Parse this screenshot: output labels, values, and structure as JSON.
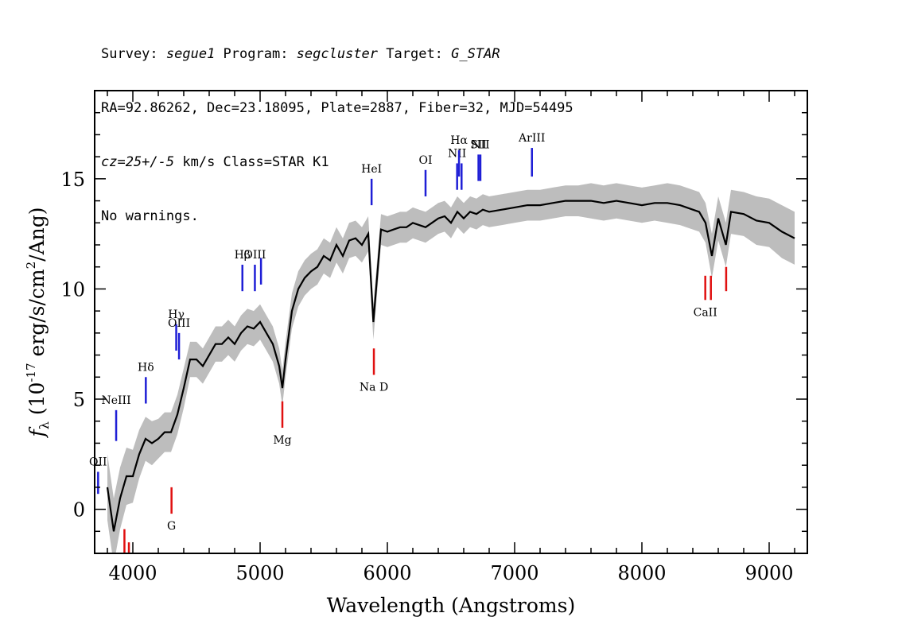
{
  "header": {
    "line1": {
      "survey_label": "Survey: ",
      "survey": "segue1",
      "program_label": " Program: ",
      "program": "segcluster",
      "target_label": " Target: ",
      "target": "G_STAR"
    },
    "line2": "RA=92.86262, Dec=23.18095, Plate=2887, Fiber=32, MJD=54495",
    "line3": {
      "cz": "cz=25+/-5",
      "rest": " km/s Class=STAR K1"
    },
    "line4": "No warnings."
  },
  "colors": {
    "spectrum": "#000000",
    "error_band": "#bdbdbd",
    "emission_line": "#1f1fd6",
    "absorption_line": "#e01010"
  },
  "chart_data": {
    "type": "line",
    "xlabel": "Wavelength (Angstroms)",
    "ylabel": "f_λ (10^-17 erg/s/cm^2/Ang)",
    "xlim": [
      3700,
      9300
    ],
    "ylim": [
      -2,
      19
    ],
    "xticks": [
      4000,
      5000,
      6000,
      7000,
      8000,
      9000
    ],
    "yticks": [
      0,
      5,
      10,
      15
    ],
    "grid": false,
    "series": [
      {
        "x": [
          3800,
          3850,
          3900,
          3950,
          4000,
          4050,
          4100,
          4150,
          4200,
          4250,
          4300,
          4350,
          4400,
          4450,
          4500,
          4550,
          4600,
          4650,
          4700,
          4750,
          4800,
          4850,
          4900,
          4950,
          5000,
          5050,
          5100,
          5150,
          5175,
          5200,
          5250,
          5300,
          5350,
          5400,
          5450,
          5500,
          5550,
          5600,
          5650,
          5700,
          5750,
          5800,
          5850,
          5890,
          5950,
          6000,
          6050,
          6100,
          6150,
          6200,
          6250,
          6300,
          6350,
          6400,
          6450,
          6500,
          6550,
          6600,
          6650,
          6700,
          6750,
          6800,
          6900,
          7000,
          7100,
          7200,
          7300,
          7400,
          7500,
          7600,
          7700,
          7800,
          7900,
          8000,
          8100,
          8200,
          8300,
          8400,
          8450,
          8500,
          8550,
          8600,
          8660,
          8700,
          8800,
          8900,
          9000,
          9100,
          9200
        ],
        "y": [
          1.0,
          -1.0,
          0.5,
          1.5,
          1.5,
          2.5,
          3.2,
          3.0,
          3.2,
          3.5,
          3.5,
          4.3,
          5.5,
          6.8,
          6.8,
          6.5,
          7.0,
          7.5,
          7.5,
          7.8,
          7.5,
          8.0,
          8.3,
          8.2,
          8.5,
          8.0,
          7.5,
          6.5,
          5.5,
          6.8,
          9.0,
          10.0,
          10.5,
          10.8,
          11.0,
          11.5,
          11.3,
          12.0,
          11.5,
          12.2,
          12.3,
          12.0,
          12.5,
          8.5,
          12.7,
          12.6,
          12.7,
          12.8,
          12.8,
          13.0,
          12.9,
          12.8,
          13.0,
          13.2,
          13.3,
          13.0,
          13.5,
          13.2,
          13.5,
          13.4,
          13.6,
          13.5,
          13.6,
          13.7,
          13.8,
          13.8,
          13.9,
          14.0,
          14.0,
          14.0,
          13.9,
          14.0,
          13.9,
          13.8,
          13.9,
          13.9,
          13.8,
          13.6,
          13.5,
          13.0,
          11.5,
          13.2,
          12.0,
          13.5,
          13.4,
          13.1,
          13.0,
          12.6,
          12.3
        ],
        "error": [
          1.5,
          1.5,
          1.4,
          1.3,
          1.2,
          1.1,
          1.0,
          1.0,
          0.9,
          0.9,
          0.9,
          0.9,
          0.9,
          0.8,
          0.8,
          0.8,
          0.8,
          0.8,
          0.8,
          0.8,
          0.8,
          0.8,
          0.8,
          0.8,
          0.8,
          0.8,
          0.8,
          0.8,
          0.8,
          0.8,
          0.8,
          0.8,
          0.8,
          0.8,
          0.8,
          0.8,
          0.8,
          0.8,
          0.8,
          0.8,
          0.8,
          0.8,
          0.8,
          0.8,
          0.7,
          0.7,
          0.7,
          0.7,
          0.7,
          0.7,
          0.7,
          0.7,
          0.7,
          0.7,
          0.7,
          0.7,
          0.7,
          0.7,
          0.7,
          0.7,
          0.7,
          0.7,
          0.7,
          0.7,
          0.7,
          0.7,
          0.7,
          0.7,
          0.7,
          0.8,
          0.8,
          0.8,
          0.8,
          0.8,
          0.8,
          0.9,
          0.9,
          0.9,
          0.9,
          0.9,
          1.0,
          1.0,
          1.0,
          1.0,
          1.0,
          1.1,
          1.1,
          1.2,
          1.2
        ]
      }
    ],
    "emission_lines": [
      {
        "label": "OII",
        "x": 3727,
        "y0": 0.7,
        "y1": 1.7
      },
      {
        "label": "NeIII",
        "x": 3869,
        "y0": 3.1,
        "y1": 4.5
      },
      {
        "label": "Hδ",
        "x": 4102,
        "y0": 4.8,
        "y1": 6.0
      },
      {
        "label": "Hγ",
        "x": 4341,
        "y0": 7.2,
        "y1": 8.4
      },
      {
        "label": "OIII",
        "x": 4363,
        "y0": 6.8,
        "y1": 8.0
      },
      {
        "label": "Hβ",
        "x": 4861,
        "y0": 9.9,
        "y1": 11.1
      },
      {
        "label": "OIII",
        "x": 4959,
        "y0": 9.9,
        "y1": 11.1
      },
      {
        "label": "",
        "x": 5007,
        "y0": 10.2,
        "y1": 11.4
      },
      {
        "label": "HeI",
        "x": 5876,
        "y0": 13.8,
        "y1": 15.0
      },
      {
        "label": "OI",
        "x": 6300,
        "y0": 14.2,
        "y1": 15.4
      },
      {
        "label": "NII",
        "x": 6548,
        "y0": 14.5,
        "y1": 15.7
      },
      {
        "label": "Hα",
        "x": 6563,
        "y0": 15.1,
        "y1": 16.3
      },
      {
        "label": "",
        "x": 6583,
        "y0": 14.5,
        "y1": 15.7
      },
      {
        "label": "SII",
        "x": 6716,
        "y0": 14.9,
        "y1": 16.1
      },
      {
        "label": "NII",
        "x": 6731,
        "y0": 14.9,
        "y1": 16.1
      },
      {
        "label": "ArIII",
        "x": 7136,
        "y0": 15.1,
        "y1": 16.4
      }
    ],
    "absorption_lines": [
      {
        "label": "",
        "x": 3934,
        "y0": -2.0,
        "y1": -0.9
      },
      {
        "label": "",
        "x": 3969,
        "y0": -2.0,
        "y1": -1.5
      },
      {
        "label": "G",
        "x": 4304,
        "y0": -0.2,
        "y1": 1.0
      },
      {
        "label": "Mg",
        "x": 5175,
        "y0": 3.7,
        "y1": 4.9
      },
      {
        "label": "Na D",
        "x": 5894,
        "y0": 6.1,
        "y1": 7.3
      },
      {
        "label": "CaII",
        "x": 8498,
        "y0": 9.5,
        "y1": 10.6
      },
      {
        "label": "",
        "x": 8542,
        "y0": 9.5,
        "y1": 10.6
      },
      {
        "label": "",
        "x": 8662,
        "y0": 9.9,
        "y1": 11.0
      }
    ]
  }
}
